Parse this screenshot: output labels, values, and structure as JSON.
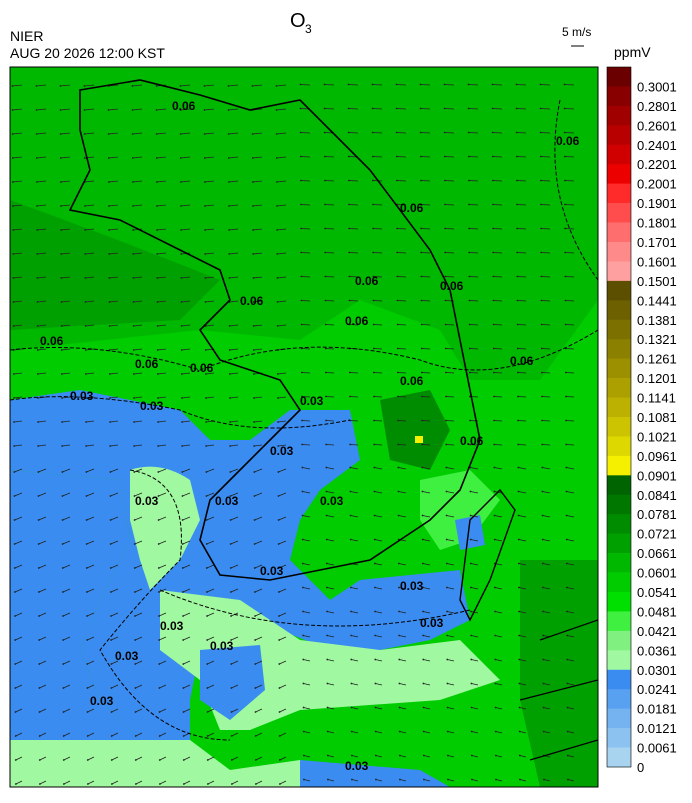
{
  "header": {
    "title_main": "O",
    "title_sub": "3",
    "agency": "NIER",
    "datetime": "AUG 20 2026 12:00 KST",
    "wind_scale": "5 m/s"
  },
  "legend": {
    "unit": "ppmV",
    "bins": [
      {
        "label": "0.3001",
        "color": "#6a0000"
      },
      {
        "label": "0.2801",
        "color": "#880000"
      },
      {
        "label": "0.2601",
        "color": "#a00000"
      },
      {
        "label": "0.2401",
        "color": "#b80000"
      },
      {
        "label": "0.2201",
        "color": "#d00000"
      },
      {
        "label": "0.2001",
        "color": "#ec0000"
      },
      {
        "label": "0.1901",
        "color": "#ff2a2a"
      },
      {
        "label": "0.1801",
        "color": "#ff4c4c"
      },
      {
        "label": "0.1701",
        "color": "#ff6e6e"
      },
      {
        "label": "0.1601",
        "color": "#ff8a8a"
      },
      {
        "label": "0.1501",
        "color": "#ffa0a0"
      },
      {
        "label": "0.1441",
        "color": "#5c5000"
      },
      {
        "label": "0.1381",
        "color": "#6c6000"
      },
      {
        "label": "0.1321",
        "color": "#7c7000"
      },
      {
        "label": "0.1261",
        "color": "#8c8000"
      },
      {
        "label": "0.1201",
        "color": "#9c9000"
      },
      {
        "label": "0.1141",
        "color": "#aca000"
      },
      {
        "label": "0.1081",
        "color": "#bcb000"
      },
      {
        "label": "0.1021",
        "color": "#ccc400"
      },
      {
        "label": "0.0961",
        "color": "#dcd800"
      },
      {
        "label": "0.0901",
        "color": "#f4f000"
      },
      {
        "label": "0.0841",
        "color": "#006400"
      },
      {
        "label": "0.0781",
        "color": "#007800"
      },
      {
        "label": "0.0721",
        "color": "#008c00"
      },
      {
        "label": "0.0661",
        "color": "#00a000"
      },
      {
        "label": "0.0601",
        "color": "#00b800"
      },
      {
        "label": "0.0541",
        "color": "#00cc00"
      },
      {
        "label": "0.0481",
        "color": "#00e000"
      },
      {
        "label": "0.0421",
        "color": "#40f040"
      },
      {
        "label": "0.0361",
        "color": "#80f080"
      },
      {
        "label": "0.0301",
        "color": "#a0f8a0"
      },
      {
        "label": "0.0241",
        "color": "#3a8cf0"
      },
      {
        "label": "0.0181",
        "color": "#58a0f0"
      },
      {
        "label": "0.0121",
        "color": "#74b2f0"
      },
      {
        "label": "0.0061",
        "color": "#8cc2f0"
      },
      {
        "label": "0",
        "color": "#a8d4f0"
      }
    ]
  },
  "contour_labels": [
    "0.06",
    "0.06",
    "0.06",
    "0.06",
    "0.06",
    "0.06",
    "0.06",
    "0.06",
    "0.06",
    "0.06",
    "0.06",
    "0.06",
    "0.06",
    "0.03",
    "0.03",
    "0.03",
    "0.03",
    "0.03",
    "0.03",
    "0.03",
    "0.03",
    "0.03",
    "0.03",
    "0.03",
    "0.03",
    "0.03",
    "0.03",
    "0.03"
  ]
}
